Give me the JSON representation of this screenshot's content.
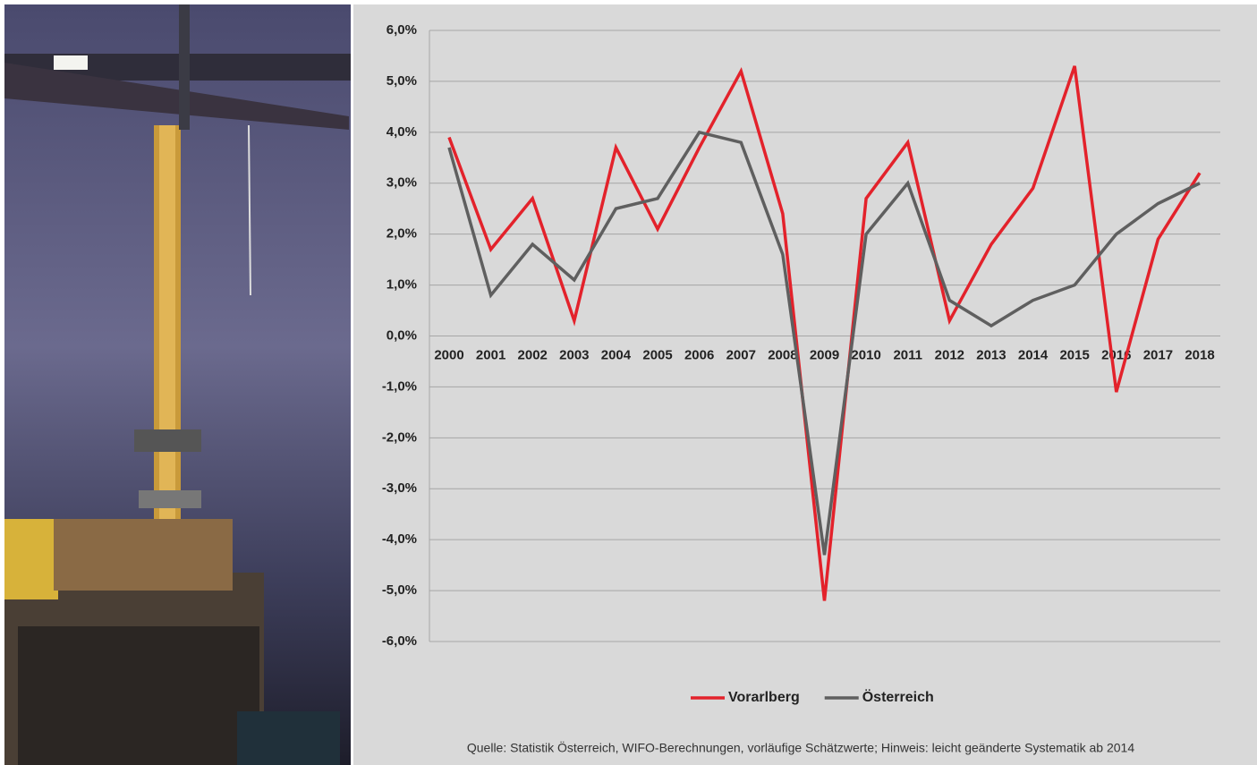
{
  "chart_data": {
    "type": "line",
    "categories": [
      "2000",
      "2001",
      "2002",
      "2003",
      "2004",
      "2005",
      "2006",
      "2007",
      "2008",
      "2009",
      "2010",
      "2011",
      "2012",
      "2013",
      "2014",
      "2015",
      "2016",
      "2017",
      "2018"
    ],
    "series": [
      {
        "name": "Vorarlberg",
        "color": "#e3222b",
        "values": [
          3.9,
          1.7,
          2.7,
          0.3,
          3.7,
          2.1,
          3.7,
          5.2,
          2.4,
          -5.2,
          2.7,
          3.8,
          0.3,
          1.8,
          2.9,
          5.3,
          -1.1,
          1.9,
          3.2
        ]
      },
      {
        "name": "Österreich",
        "color": "#5f5f5f",
        "values": [
          3.7,
          0.8,
          1.8,
          1.1,
          2.5,
          2.7,
          4.0,
          3.8,
          1.6,
          -4.3,
          2.0,
          3.0,
          0.7,
          0.2,
          0.7,
          1.0,
          2.0,
          2.6,
          3.0
        ]
      }
    ],
    "ylim": [
      -6,
      6
    ],
    "yticks": [
      {
        "value": -6,
        "label": "-6,0%"
      },
      {
        "value": -5,
        "label": "-5,0%"
      },
      {
        "value": -4,
        "label": "-4,0%"
      },
      {
        "value": -3,
        "label": "-3,0%"
      },
      {
        "value": -2,
        "label": "-2,0%"
      },
      {
        "value": -1,
        "label": "-1,0%"
      },
      {
        "value": 0,
        "label": "0,0%"
      },
      {
        "value": 1,
        "label": "1,0%"
      },
      {
        "value": 2,
        "label": "2,0%"
      },
      {
        "value": 3,
        "label": "3,0%"
      },
      {
        "value": 4,
        "label": "4,0%"
      },
      {
        "value": 5,
        "label": "5,0%"
      },
      {
        "value": 6,
        "label": "6,0%"
      }
    ],
    "grid": true,
    "legend": "bottom",
    "source": "Quelle: Statistik Österreich, WIFO-Berechnungen, vorläufige Schätzwerte; Hinweis: leicht geänderte Systematik ab 2014"
  }
}
